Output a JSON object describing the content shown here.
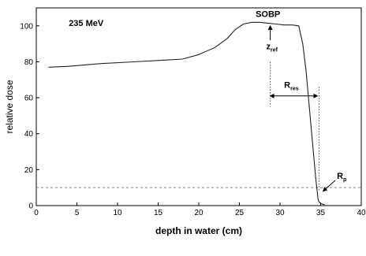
{
  "chart_data": {
    "type": "line",
    "title": "",
    "xlabel": "depth in water (cm)",
    "ylabel": "relative dose",
    "xlim": [
      0,
      40
    ],
    "ylim": [
      0,
      110
    ],
    "x_ticks": [
      0,
      5,
      10,
      15,
      20,
      25,
      30,
      35,
      40
    ],
    "y_ticks": [
      0,
      20,
      40,
      60,
      80,
      100
    ],
    "grid": false,
    "series": [
      {
        "x": [
          1.5,
          4,
          8,
          12,
          16,
          18,
          20,
          22,
          23.5,
          24.5,
          25.5,
          26.5,
          27.5,
          28.5,
          29.5,
          30.5,
          31.5,
          32.3,
          32.8,
          33.2,
          33.6,
          34.0,
          34.4,
          34.7,
          34.9,
          35.1,
          35.5
        ],
        "y": [
          77,
          77.5,
          79,
          80,
          81,
          81.5,
          84,
          88,
          93,
          98,
          101,
          102,
          102,
          101.5,
          101,
          100.5,
          100.5,
          100,
          90,
          75,
          55,
          35,
          15,
          3,
          1.5,
          1,
          0.5
        ]
      }
    ],
    "reference_line": {
      "y": 10,
      "style": "dashed"
    },
    "annotations": {
      "energy": "235 MeV",
      "sobp": "SOBP",
      "z_main": "z",
      "z_sub": "ref",
      "r_main": "R",
      "r_sub": "res",
      "rp_main": "R",
      "rp_sub": "p"
    }
  }
}
